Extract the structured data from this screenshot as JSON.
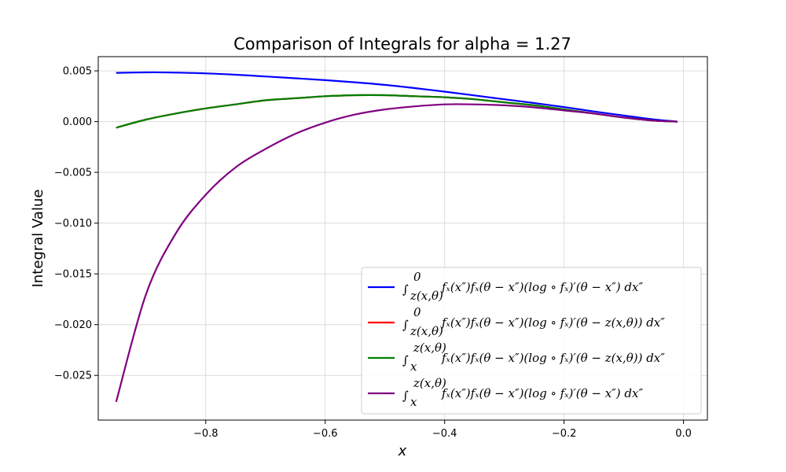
{
  "chart_data": {
    "type": "line",
    "title": "Comparison of Integrals for alpha = 1.27",
    "xlabel": "x",
    "ylabel": "Integral Value",
    "xlim": [
      -0.98,
      0.04
    ],
    "ylim": [
      -0.0294,
      0.0064
    ],
    "xticks": [
      -0.8,
      -0.6,
      -0.4,
      -0.2,
      0.0
    ],
    "xtick_labels": [
      "−0.8",
      "−0.6",
      "−0.4",
      "−0.2",
      "0.0"
    ],
    "yticks": [
      0.005,
      0.0,
      -0.005,
      -0.01,
      -0.015,
      -0.02,
      -0.025
    ],
    "ytick_labels": [
      "0.005",
      "0.000",
      "−0.005",
      "−0.010",
      "−0.015",
      "−0.020",
      "−0.025"
    ],
    "grid": true,
    "legend_position": "lower-right",
    "x": [
      -0.95,
      -0.9,
      -0.85,
      -0.8,
      -0.75,
      -0.7,
      -0.65,
      -0.6,
      -0.55,
      -0.5,
      -0.45,
      -0.4,
      -0.35,
      -0.3,
      -0.25,
      -0.2,
      -0.15,
      -0.1,
      -0.05,
      -0.01
    ],
    "series": [
      {
        "name": "∫_{z(x,θ)}^{0} f_X(x″) f_X(θ−x″) (log ∘ f_X)′(θ−x″) dx″",
        "color": "#0000ff",
        "values": [
          0.0048,
          0.00485,
          0.00483,
          0.00475,
          0.00462,
          0.00445,
          0.00427,
          0.00408,
          0.00387,
          0.00362,
          0.0033,
          0.00295,
          0.00258,
          0.0022,
          0.00183,
          0.00143,
          0.001,
          0.0006,
          0.00022,
          0.0
        ]
      },
      {
        "name": "∫_{z(x,θ)}^{0} f_X(x″) f_X(θ−x″) (log ∘ f_X)′(θ−z(x,θ)) dx″",
        "color": "#ff0000",
        "values": [
          -0.0006,
          0.0002,
          0.0008,
          0.0013,
          0.0017,
          0.0021,
          0.0023,
          0.0025,
          0.0026,
          0.0026,
          0.0025,
          0.0024,
          0.0022,
          0.0019,
          0.0016,
          0.0012,
          0.0008,
          0.0004,
          0.0001,
          0.0
        ]
      },
      {
        "name": "∫_{x}^{z(x,θ)} f_X(x″) f_X(θ−x″) (log ∘ f_X)′(θ−z(x,θ)) dx″",
        "color": "#008000",
        "values": [
          -0.0006,
          0.0002,
          0.0008,
          0.0013,
          0.0017,
          0.0021,
          0.0023,
          0.0025,
          0.0026,
          0.0026,
          0.0025,
          0.0024,
          0.0022,
          0.0019,
          0.0016,
          0.0012,
          0.0008,
          0.0004,
          0.0001,
          0.0
        ]
      },
      {
        "name": "∫_{x}^{z(x,θ)} f_X(x″) f_X(θ−x″) (log ∘ f_X)′(θ−x″) dx″",
        "color": "#800080",
        "values": [
          -0.0276,
          -0.017,
          -0.011,
          -0.0072,
          -0.0045,
          -0.0027,
          -0.0012,
          -0.0001,
          0.0007,
          0.0012,
          0.0015,
          0.0017,
          0.0017,
          0.0016,
          0.0014,
          0.0011,
          0.0008,
          0.0004,
          0.0001,
          0.0
        ]
      }
    ],
    "legend": [
      {
        "integrand_prefix": "f",
        "lower": "z(x,θ)",
        "upper": "0",
        "text": "fₓ(x″)fₓ(θ − x″)(log ∘ fₓ)′(θ − x″) dx″"
      },
      {
        "lower": "z(x,θ)",
        "upper": "0",
        "text": "fₓ(x″)fₓ(θ − x″)(log ∘ fₓ)′(θ − z(x,θ)) dx″"
      },
      {
        "lower": "x",
        "upper": "z(x,θ)",
        "text": "fₓ(x″)fₓ(θ − x″)(log ∘ fₓ)′(θ − z(x,θ)) dx″"
      },
      {
        "lower": "x",
        "upper": "z(x,θ)",
        "text": "fₓ(x″)fₓ(θ − x″)(log ∘ fₓ)′(θ − x″) dx″"
      }
    ]
  }
}
